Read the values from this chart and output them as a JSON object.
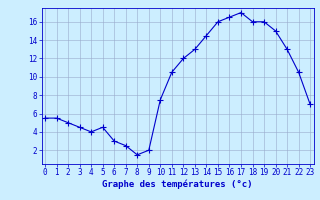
{
  "x": [
    0,
    1,
    2,
    3,
    4,
    5,
    6,
    7,
    8,
    9,
    10,
    11,
    12,
    13,
    14,
    15,
    16,
    17,
    18,
    19,
    20,
    21,
    22,
    23
  ],
  "y": [
    5.5,
    5.5,
    5.0,
    4.5,
    4.0,
    4.5,
    3.0,
    2.5,
    1.5,
    2.0,
    7.5,
    10.5,
    12.0,
    13.0,
    14.5,
    16.0,
    16.5,
    17.0,
    16.0,
    16.0,
    15.0,
    13.0,
    10.5,
    7.0
  ],
  "line_color": "#0000cc",
  "marker": "+",
  "marker_size": 4,
  "marker_linewidth": 0.8,
  "line_width": 0.8,
  "background_color": "#cceeff",
  "grid_color": "#99aacc",
  "xlabel": "Graphe des températures (°c)",
  "xlabel_color": "#0000cc",
  "xlabel_fontsize": 6.5,
  "ylabel_ticks": [
    2,
    4,
    6,
    8,
    10,
    12,
    14,
    16
  ],
  "xtick_labels": [
    "0",
    "1",
    "2",
    "3",
    "4",
    "5",
    "6",
    "7",
    "8",
    "9",
    "10",
    "11",
    "12",
    "13",
    "14",
    "15",
    "16",
    "17",
    "18",
    "19",
    "20",
    "21",
    "22",
    "23"
  ],
  "ylim": [
    0.5,
    17.5
  ],
  "xlim": [
    -0.3,
    23.3
  ],
  "tick_color": "#0000cc",
  "tick_fontsize": 5.5,
  "spine_color": "#0000cc"
}
